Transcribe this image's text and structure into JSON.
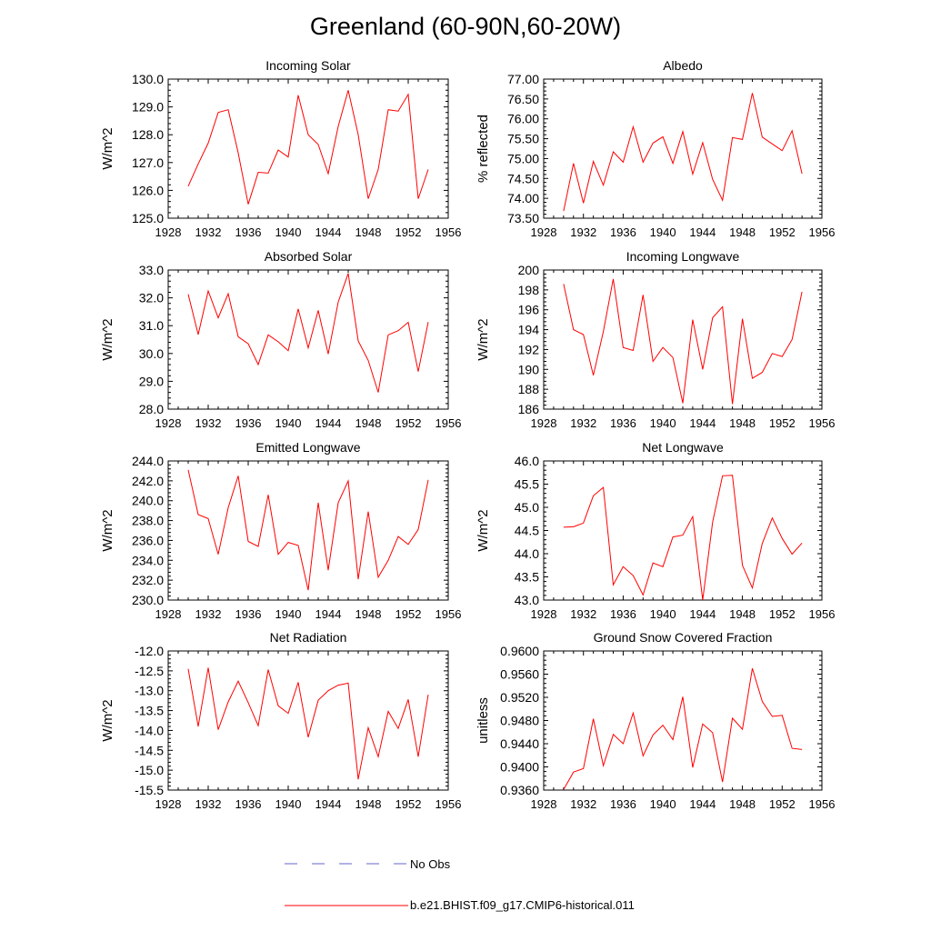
{
  "title": "Greenland (60-90N,60-20W)",
  "colors": {
    "model": "#ff0000",
    "obs": "#6666cc",
    "axis": "#000000"
  },
  "legend": {
    "obs_label": "No Obs",
    "model_label": "b.e21.BHIST.f09_g17.CMIP6-historical.011"
  },
  "chart_data": [
    {
      "type": "line",
      "title": "Incoming Solar",
      "ylabel": "W/m^2",
      "xlim": [
        1928,
        1956
      ],
      "ylim": [
        125.0,
        130.0
      ],
      "x_ticks": [
        "1928",
        "1932",
        "1936",
        "1940",
        "1944",
        "1948",
        "1952",
        "1956"
      ],
      "y_ticks": [
        "125.0",
        "126.0",
        "127.0",
        "128.0",
        "129.0",
        "130.0"
      ],
      "x": [
        1930,
        1931,
        1932,
        1933,
        1934,
        1935,
        1936,
        1937,
        1938,
        1939,
        1940,
        1941,
        1942,
        1943,
        1944,
        1945,
        1946,
        1947,
        1948,
        1949,
        1950,
        1951,
        1952,
        1953,
        1954
      ],
      "series": [
        {
          "name": "b.e21.BHIST.f09_g17.CMIP6-historical.011",
          "values": [
            126.15,
            126.95,
            127.7,
            128.8,
            128.9,
            127.35,
            125.5,
            126.65,
            126.62,
            127.45,
            127.2,
            129.42,
            128.0,
            127.65,
            126.6,
            128.3,
            129.6,
            128.0,
            125.7,
            126.75,
            128.9,
            128.85,
            129.45,
            125.7,
            126.75
          ]
        }
      ]
    },
    {
      "type": "line",
      "title": "Albedo",
      "ylabel": "% reflected",
      "xlim": [
        1928,
        1956
      ],
      "ylim": [
        73.5,
        77.0
      ],
      "x_ticks": [
        "1928",
        "1932",
        "1936",
        "1940",
        "1944",
        "1948",
        "1952",
        "1956"
      ],
      "y_ticks": [
        "73.50",
        "74.00",
        "74.50",
        "75.00",
        "75.50",
        "76.00",
        "76.50",
        "77.00"
      ],
      "x": [
        1930,
        1931,
        1932,
        1933,
        1934,
        1935,
        1936,
        1937,
        1938,
        1939,
        1940,
        1941,
        1942,
        1943,
        1944,
        1945,
        1946,
        1947,
        1948,
        1949,
        1950,
        1951,
        1952,
        1953,
        1954
      ],
      "series": [
        {
          "name": "b.e21.BHIST.f09_g17.CMIP6-historical.011",
          "values": [
            73.68,
            74.88,
            73.88,
            74.93,
            74.33,
            75.17,
            74.91,
            75.8,
            74.91,
            75.39,
            75.55,
            74.88,
            75.68,
            74.61,
            75.4,
            74.48,
            73.95,
            75.53,
            75.48,
            76.65,
            75.54,
            75.37,
            75.2,
            75.7,
            74.62
          ]
        }
      ]
    },
    {
      "type": "line",
      "title": "Absorbed Solar",
      "ylabel": "W/m^2",
      "xlim": [
        1928,
        1956
      ],
      "ylim": [
        28.0,
        33.0
      ],
      "x_ticks": [
        "1928",
        "1932",
        "1936",
        "1940",
        "1944",
        "1948",
        "1952",
        "1956"
      ],
      "y_ticks": [
        "28.0",
        "29.0",
        "30.0",
        "31.0",
        "32.0",
        "33.0"
      ],
      "x": [
        1930,
        1931,
        1932,
        1933,
        1934,
        1935,
        1936,
        1937,
        1938,
        1939,
        1940,
        1941,
        1942,
        1943,
        1944,
        1945,
        1946,
        1947,
        1948,
        1949,
        1950,
        1951,
        1952,
        1953,
        1954
      ],
      "series": [
        {
          "name": "b.e21.BHIST.f09_g17.CMIP6-historical.011",
          "values": [
            32.13,
            30.68,
            32.25,
            31.28,
            32.15,
            30.6,
            30.35,
            29.6,
            30.67,
            30.42,
            30.1,
            31.6,
            30.2,
            31.55,
            29.98,
            31.85,
            32.88,
            30.45,
            29.75,
            28.6,
            30.67,
            30.82,
            31.12,
            29.35,
            31.13
          ]
        }
      ]
    },
    {
      "type": "line",
      "title": "Incoming Longwave",
      "ylabel": "W/m^2",
      "xlim": [
        1928,
        1956
      ],
      "ylim": [
        186,
        200
      ],
      "x_ticks": [
        "1928",
        "1932",
        "1936",
        "1940",
        "1944",
        "1948",
        "1952",
        "1956"
      ],
      "y_ticks": [
        "186",
        "188",
        "190",
        "192",
        "194",
        "196",
        "198",
        "200"
      ],
      "x": [
        1930,
        1931,
        1932,
        1933,
        1934,
        1935,
        1936,
        1937,
        1938,
        1939,
        1940,
        1941,
        1942,
        1943,
        1944,
        1945,
        1946,
        1947,
        1948,
        1949,
        1950,
        1951,
        1952,
        1953,
        1954
      ],
      "series": [
        {
          "name": "b.e21.BHIST.f09_g17.CMIP6-historical.011",
          "values": [
            198.6,
            194.0,
            193.5,
            189.4,
            193.8,
            199.1,
            192.2,
            191.9,
            197.5,
            190.8,
            192.2,
            191.2,
            186.6,
            195.0,
            190.0,
            195.2,
            196.3,
            186.5,
            195.1,
            189.1,
            189.7,
            191.6,
            191.3,
            193.0,
            197.8
          ]
        }
      ]
    },
    {
      "type": "line",
      "title": "Emitted Longwave",
      "ylabel": "W/m^2",
      "xlim": [
        1928,
        1956
      ],
      "ylim": [
        230.0,
        244.0
      ],
      "x_ticks": [
        "1928",
        "1932",
        "1936",
        "1940",
        "1944",
        "1948",
        "1952",
        "1956"
      ],
      "y_ticks": [
        "230.0",
        "232.0",
        "234.0",
        "236.0",
        "238.0",
        "240.0",
        "242.0",
        "244.0"
      ],
      "x": [
        1930,
        1931,
        1932,
        1933,
        1934,
        1935,
        1936,
        1937,
        1938,
        1939,
        1940,
        1941,
        1942,
        1943,
        1944,
        1945,
        1946,
        1947,
        1948,
        1949,
        1950,
        1951,
        1952,
        1953,
        1954
      ],
      "series": [
        {
          "name": "b.e21.BHIST.f09_g17.CMIP6-historical.011",
          "values": [
            243.1,
            238.6,
            238.2,
            234.6,
            239.3,
            242.5,
            235.9,
            235.4,
            240.6,
            234.6,
            235.8,
            235.5,
            231.0,
            239.8,
            233.0,
            239.8,
            242.0,
            232.1,
            238.9,
            232.3,
            234.0,
            236.4,
            235.6,
            237.1,
            242.1
          ]
        }
      ]
    },
    {
      "type": "line",
      "title": "Net Longwave",
      "ylabel": "W/m^2",
      "xlim": [
        1928,
        1956
      ],
      "ylim": [
        43.0,
        46.0
      ],
      "x_ticks": [
        "1928",
        "1932",
        "1936",
        "1940",
        "1944",
        "1948",
        "1952",
        "1956"
      ],
      "y_ticks": [
        "43.0",
        "43.5",
        "44.0",
        "44.5",
        "45.0",
        "45.5",
        "46.0"
      ],
      "x": [
        1930,
        1931,
        1932,
        1933,
        1934,
        1935,
        1936,
        1937,
        1938,
        1939,
        1940,
        1941,
        1942,
        1943,
        1944,
        1945,
        1946,
        1947,
        1948,
        1949,
        1950,
        1951,
        1952,
        1953,
        1954
      ],
      "series": [
        {
          "name": "b.e21.BHIST.f09_g17.CMIP6-historical.011",
          "values": [
            44.57,
            44.58,
            44.66,
            45.25,
            45.43,
            43.33,
            43.72,
            43.53,
            43.11,
            43.8,
            43.72,
            44.36,
            44.4,
            44.8,
            43.0,
            44.68,
            45.68,
            45.69,
            43.75,
            43.26,
            44.22,
            44.77,
            44.33,
            43.99,
            44.23
          ]
        }
      ]
    },
    {
      "type": "line",
      "title": "Net Radiation",
      "ylabel": "W/m^2",
      "xlim": [
        1928,
        1956
      ],
      "ylim": [
        -15.5,
        -12.0
      ],
      "x_ticks": [
        "1928",
        "1932",
        "1936",
        "1940",
        "1944",
        "1948",
        "1952",
        "1956"
      ],
      "y_ticks": [
        "-15.5",
        "-15.0",
        "-14.5",
        "-14.0",
        "-13.5",
        "-13.0",
        "-12.5",
        "-12.0"
      ],
      "x": [
        1930,
        1931,
        1932,
        1933,
        1934,
        1935,
        1936,
        1937,
        1938,
        1939,
        1940,
        1941,
        1942,
        1943,
        1944,
        1945,
        1946,
        1947,
        1948,
        1949,
        1950,
        1951,
        1952,
        1953,
        1954
      ],
      "series": [
        {
          "name": "b.e21.BHIST.f09_g17.CMIP6-historical.011",
          "values": [
            -12.45,
            -13.9,
            -12.42,
            -13.98,
            -13.28,
            -12.76,
            -13.3,
            -13.88,
            -12.47,
            -13.38,
            -13.57,
            -12.79,
            -14.17,
            -13.24,
            -13.0,
            -12.86,
            -12.81,
            -15.23,
            -13.93,
            -14.66,
            -13.52,
            -13.95,
            -13.22,
            -14.66,
            -13.1
          ]
        }
      ]
    },
    {
      "type": "line",
      "title": "Ground Snow Covered Fraction",
      "ylabel": "unitless",
      "xlim": [
        1928,
        1956
      ],
      "ylim": [
        0.936,
        0.96
      ],
      "x_ticks": [
        "1928",
        "1932",
        "1936",
        "1940",
        "1944",
        "1948",
        "1952",
        "1956"
      ],
      "y_ticks": [
        "0.9360",
        "0.9400",
        "0.9440",
        "0.9480",
        "0.9520",
        "0.9560",
        "0.9600"
      ],
      "x": [
        1930,
        1931,
        1932,
        1933,
        1934,
        1935,
        1936,
        1937,
        1938,
        1939,
        1940,
        1941,
        1942,
        1943,
        1944,
        1945,
        1946,
        1947,
        1948,
        1949,
        1950,
        1951,
        1952,
        1953,
        1954
      ],
      "series": [
        {
          "name": "b.e21.BHIST.f09_g17.CMIP6-historical.011",
          "values": [
            0.9361,
            0.9391,
            0.9397,
            0.9483,
            0.9402,
            0.9456,
            0.944,
            0.9493,
            0.9419,
            0.9455,
            0.9472,
            0.9447,
            0.9521,
            0.9399,
            0.9474,
            0.9459,
            0.9374,
            0.9484,
            0.9465,
            0.957,
            0.9513,
            0.9487,
            0.9489,
            0.9432,
            0.943
          ]
        }
      ]
    }
  ]
}
